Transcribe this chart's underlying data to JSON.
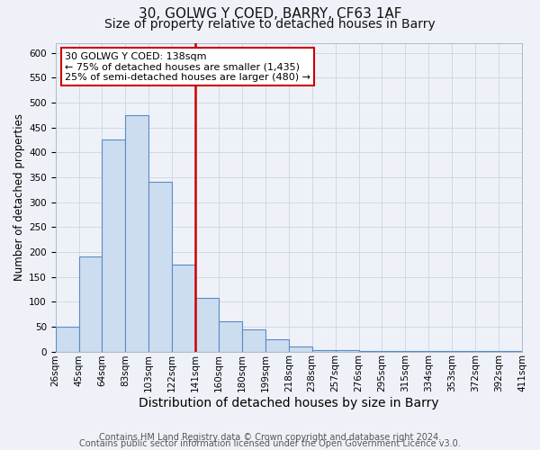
{
  "title": "30, GOLWG Y COED, BARRY, CF63 1AF",
  "subtitle": "Size of property relative to detached houses in Barry",
  "xlabel": "Distribution of detached houses by size in Barry",
  "ylabel": "Number of detached properties",
  "bin_labels": [
    "26sqm",
    "45sqm",
    "64sqm",
    "83sqm",
    "103sqm",
    "122sqm",
    "141sqm",
    "160sqm",
    "180sqm",
    "199sqm",
    "218sqm",
    "238sqm",
    "257sqm",
    "276sqm",
    "295sqm",
    "315sqm",
    "334sqm",
    "353sqm",
    "372sqm",
    "392sqm",
    "411sqm"
  ],
  "bar_values": [
    50,
    190,
    425,
    475,
    340,
    175,
    107,
    60,
    44,
    25,
    10,
    3,
    2,
    1,
    1,
    1,
    1,
    1,
    1,
    1
  ],
  "bar_color": "#ccddf0",
  "bar_edge_color": "#5b8ac5",
  "vline_x": 6,
  "vline_color": "#cc0000",
  "annotation_text": "30 GOLWG Y COED: 138sqm\n← 75% of detached houses are smaller (1,435)\n25% of semi-detached houses are larger (480) →",
  "annotation_box_edge_color": "#cc0000",
  "annotation_box_face_color": "#ffffff",
  "ylim": [
    0,
    620
  ],
  "yticks": [
    0,
    50,
    100,
    150,
    200,
    250,
    300,
    350,
    400,
    450,
    500,
    550,
    600
  ],
  "footer_line1": "Contains HM Land Registry data © Crown copyright and database right 2024.",
  "footer_line2": "Contains public sector information licensed under the Open Government Licence v3.0.",
  "background_color": "#eef2f8",
  "plot_bg_color": "#eef2f8",
  "grid_color": "#d0d8e8",
  "title_fontsize": 11,
  "subtitle_fontsize": 10,
  "xlabel_fontsize": 10,
  "ylabel_fontsize": 8.5,
  "tick_fontsize": 7.5,
  "footer_fontsize": 7,
  "annotation_fontsize": 8
}
